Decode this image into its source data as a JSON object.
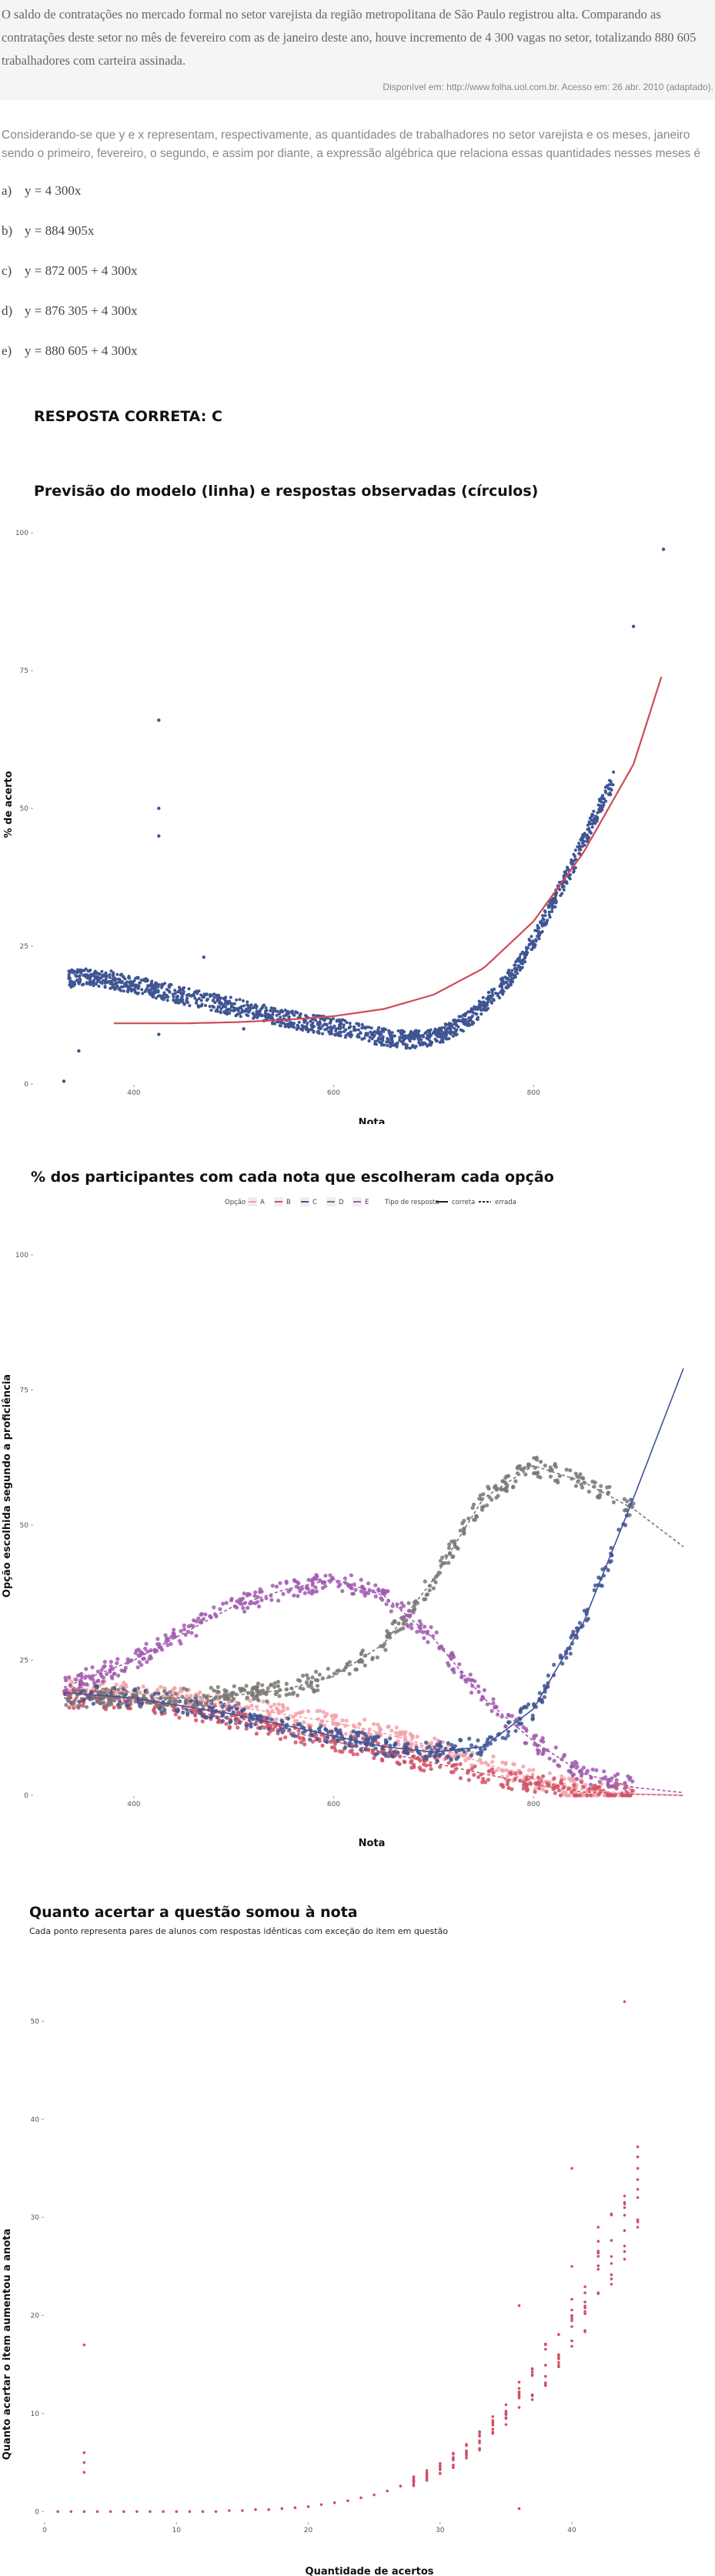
{
  "passage": {
    "text": "O saldo de contratações no mercado formal no setor varejista da região metropolitana de São Paulo registrou alta. Comparando as contratações deste setor no mês de fevereiro com as de janeiro deste ano, houve incremento de 4 300 vagas no setor, totalizando 880 605 trabalhadores com carteira assinada.",
    "source": "Disponível em: http://www.folha.uol.com.br. Acesso em: 26 abr. 2010 (adaptado)."
  },
  "question": "Considerando-se que y e x representam, respectivamente, as quantidades de trabalhadores no setor varejista e os meses, janeiro sendo o primeiro, fevereiro, o segundo, e assim por diante, a expressão algébrica que relaciona essas quantidades nesses meses é",
  "options": [
    {
      "letter": "a)",
      "text": "y = 4 300x"
    },
    {
      "letter": "b)",
      "text": "y = 884 905x"
    },
    {
      "letter": "c)",
      "text": "y = 872 005 + 4 300x"
    },
    {
      "letter": "d)",
      "text": "y = 876 305 + 4 300x"
    },
    {
      "letter": "e)",
      "text": "y = 880 605 + 4 300x"
    }
  ],
  "answer": "RESPOSTA CORRETA: C",
  "colors": {
    "A": "#f4a0a8",
    "B": "#d05065",
    "C": "#3f5593",
    "D": "#7a7672",
    "E": "#a05aae",
    "model_line": "#d04a55",
    "obs": "#3f5593"
  },
  "chart_data": [
    {
      "type": "line",
      "title": "Previsão do modelo (linha) e respostas observadas (círculos)",
      "xlabel": "Nota",
      "ylabel": "% de acerto",
      "xlim": [
        300,
        950
      ],
      "ylim": [
        0,
        100
      ],
      "x_ticks": [
        400,
        600,
        800
      ],
      "y_ticks": [
        0,
        25,
        50,
        75,
        100
      ],
      "model": {
        "x": [
          380,
          450,
          500,
          550,
          600,
          650,
          700,
          750,
          800,
          850,
          900,
          930
        ],
        "y": [
          11,
          11,
          11.2,
          11.6,
          12.3,
          13.6,
          16.2,
          21,
          29.5,
          42,
          58,
          75
        ]
      },
      "observed": {
        "x": [
          330,
          350,
          375,
          400,
          425,
          450,
          475,
          500,
          525,
          550,
          575,
          600,
          625,
          650,
          675,
          700,
          720,
          740,
          760,
          780,
          800,
          820,
          840,
          860,
          880,
          900,
          910,
          930
        ],
        "y": [
          19,
          19.5,
          19,
          18,
          17,
          16,
          15,
          14,
          13,
          12,
          11,
          10.5,
          9.5,
          8.5,
          8,
          8.5,
          10,
          12.5,
          16,
          20,
          26,
          33,
          40,
          48,
          55,
          65,
          83,
          97
        ]
      },
      "outliers": {
        "x": [
          330,
          345,
          425,
          425,
          425,
          425,
          470,
          510,
          900,
          930
        ],
        "y": [
          0.5,
          6,
          66,
          50,
          45,
          9,
          23,
          10,
          83,
          97
        ]
      }
    },
    {
      "type": "line",
      "title": "% dos participantes com cada nota que escolheram cada opção",
      "xlabel": "Nota",
      "ylabel": "Opção escolhida segundo a proficiência",
      "legend": {
        "option_title": "Opção",
        "options": [
          "A",
          "B",
          "C",
          "D",
          "E"
        ],
        "type_title": "Tipo de resposta",
        "types": [
          "correta",
          "errada"
        ]
      },
      "xlim": [
        300,
        950
      ],
      "ylim": [
        0,
        100
      ],
      "x_ticks": [
        400,
        600,
        800
      ],
      "y_ticks": [
        0,
        25,
        50,
        75,
        100
      ],
      "categories": [
        330,
        400,
        450,
        500,
        550,
        600,
        650,
        700,
        750,
        800,
        850,
        900,
        950
      ],
      "series": [
        {
          "name": "A",
          "values": [
            20,
            19,
            18,
            16.5,
            15,
            13.5,
            11.5,
            9,
            6,
            3,
            1,
            0.3,
            0
          ]
        },
        {
          "name": "B",
          "values": [
            18,
            17.5,
            16,
            14,
            12,
            10,
            8,
            6,
            4,
            2,
            0.6,
            0.2,
            0
          ]
        },
        {
          "name": "C",
          "values": [
            19,
            18,
            16.5,
            15,
            13,
            11,
            9,
            8,
            9,
            16,
            32,
            55,
            79
          ]
        },
        {
          "name": "D",
          "values": [
            18,
            18,
            18,
            18.5,
            19.5,
            22,
            28,
            40,
            55,
            61,
            58,
            53,
            46
          ]
        },
        {
          "name": "E",
          "values": [
            20,
            25,
            30,
            35,
            38,
            40,
            37,
            29,
            18,
            10,
            4,
            1.5,
            0.5
          ]
        }
      ]
    },
    {
      "type": "scatter",
      "title": "Quanto acertar a questão somou à nota",
      "subtitle": "Cada ponto representa pares de alunos com respostas idênticas com exceção do item em questão",
      "xlabel": "Quantidade de acertos",
      "ylabel": "Quanto acertar o item aumentou a anota",
      "xlim": [
        0,
        48
      ],
      "ylim": [
        -1,
        52
      ],
      "x_ticks": [
        0,
        10,
        20,
        30,
        40
      ],
      "y_ticks": [
        0,
        10,
        20,
        30,
        40,
        50
      ],
      "x": [
        1,
        2,
        3,
        4,
        5,
        6,
        7,
        8,
        9,
        10,
        11,
        12,
        13,
        14,
        15,
        16,
        17,
        18,
        19,
        20,
        21,
        22,
        23,
        24,
        25,
        26,
        27,
        28,
        29,
        30,
        31,
        32,
        33,
        34,
        35,
        36,
        37,
        38,
        39,
        40,
        41,
        42,
        43,
        44,
        45
      ],
      "y": [
        0,
        0,
        0,
        0,
        0,
        0,
        0,
        0,
        0,
        0,
        0,
        0,
        0,
        0.1,
        0.1,
        0.2,
        0.2,
        0.3,
        0.4,
        0.5,
        0.7,
        0.9,
        1.1,
        1.4,
        1.7,
        2.1,
        2.6,
        3.1,
        3.7,
        4.4,
        5.2,
        6,
        7.2,
        8.6,
        10,
        11.5,
        13,
        15,
        17,
        19,
        21,
        24,
        27,
        30,
        33
      ],
      "outliers": {
        "x": [
          3,
          3,
          3,
          3,
          36,
          36,
          40,
          40,
          42,
          44,
          45
        ],
        "y": [
          17,
          6,
          5,
          4,
          0.3,
          21,
          35,
          25,
          29,
          52,
          35
        ]
      }
    }
  ]
}
